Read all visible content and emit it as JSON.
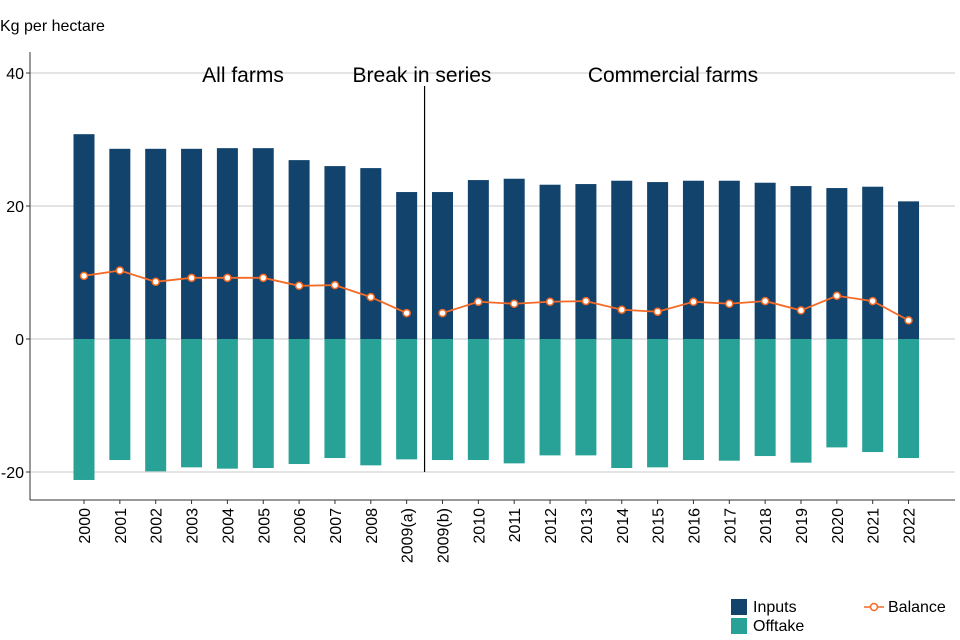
{
  "chart_data": {
    "type": "bar",
    "ylabel": "Kg per hectare",
    "ylim": [
      -24,
      44
    ],
    "yticks": [
      -20,
      0,
      20,
      40
    ],
    "grid": true,
    "categories": [
      "2000",
      "2001",
      "2002",
      "2003",
      "2004",
      "2005",
      "2006",
      "2007",
      "2008",
      "2009(a)",
      "2009(b)",
      "2010",
      "2011",
      "2012",
      "2013",
      "2014",
      "2015",
      "2016",
      "2017",
      "2018",
      "2019",
      "2020",
      "2021",
      "2022"
    ],
    "series": [
      {
        "name": "Inputs",
        "kind": "bar",
        "color": "#12436d",
        "values": [
          30.8,
          28.6,
          28.6,
          28.6,
          28.7,
          28.7,
          26.9,
          26.0,
          25.7,
          22.1,
          22.1,
          23.9,
          24.1,
          23.2,
          23.3,
          23.8,
          23.6,
          23.8,
          23.8,
          23.5,
          23.0,
          22.7,
          22.9,
          20.7
        ]
      },
      {
        "name": "Offtake",
        "kind": "bar",
        "color": "#28a197",
        "values": [
          -21.2,
          -18.2,
          -19.9,
          -19.3,
          -19.5,
          -19.4,
          -18.8,
          -17.9,
          -19.0,
          -18.1,
          -18.2,
          -18.2,
          -18.7,
          -17.5,
          -17.5,
          -19.4,
          -19.3,
          -18.2,
          -18.3,
          -17.6,
          -18.6,
          -16.3,
          -17.0,
          -17.9
        ]
      },
      {
        "name": "Balance",
        "kind": "line",
        "color": "#f46a25",
        "values": [
          9.5,
          10.3,
          8.6,
          9.2,
          9.2,
          9.2,
          8.0,
          8.1,
          6.3,
          3.9,
          3.9,
          5.6,
          5.3,
          5.6,
          5.7,
          4.4,
          4.1,
          5.6,
          5.3,
          5.7,
          4.3,
          6.5,
          5.7,
          2.8
        ]
      }
    ],
    "annotations": [
      "All farms",
      "Break in series",
      "Commercial farms"
    ],
    "legend": [
      "Inputs",
      "Offtake",
      "Balance"
    ]
  }
}
